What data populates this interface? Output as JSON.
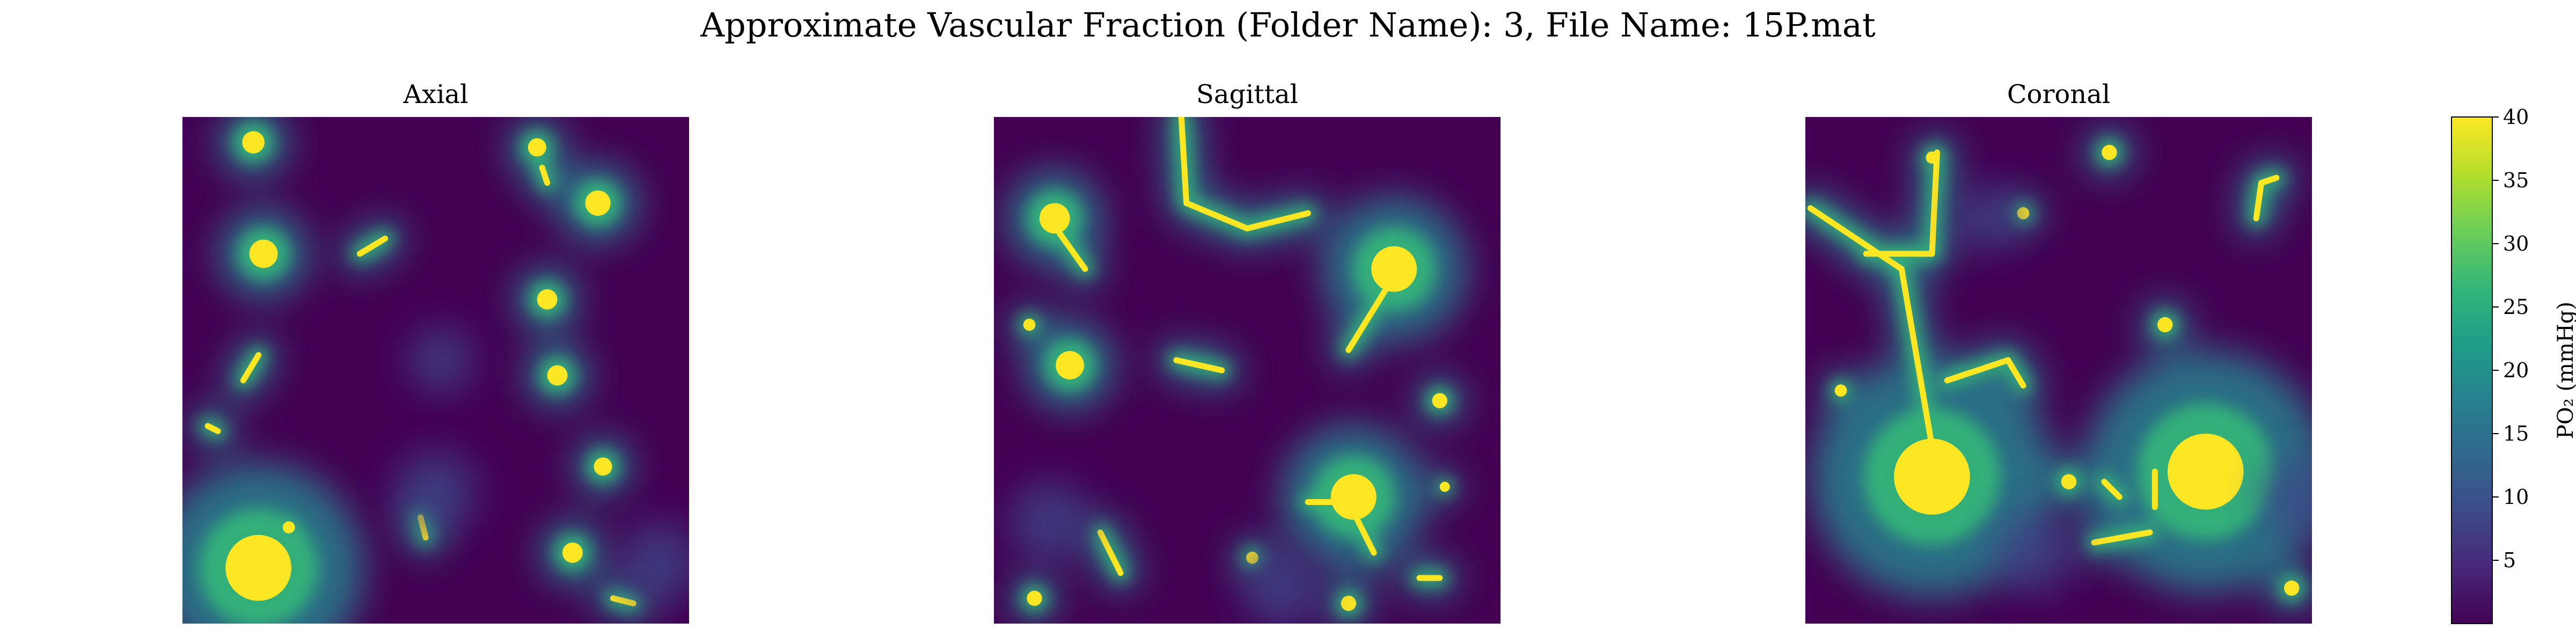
{
  "figure": {
    "suptitle": "Approximate Vascular Fraction (Folder Name): 3, File Name: 15P.mat"
  },
  "chart_data": {
    "type": "heatmap",
    "title": "Approximate Vascular Fraction (Folder Name): 3, File Name: 15P.mat",
    "colormap": "viridis",
    "axes_visible": false,
    "panels": [
      {
        "title": "Axial",
        "vessels": [
          {
            "kind": "blob",
            "x": 0.14,
            "y": 0.05,
            "r": 0.022
          },
          {
            "kind": "blob",
            "x": 0.16,
            "y": 0.27,
            "r": 0.028
          },
          {
            "kind": "segment",
            "x1": 0.35,
            "y1": 0.27,
            "x2": 0.4,
            "y2": 0.24
          },
          {
            "kind": "blob",
            "x": 0.7,
            "y": 0.06,
            "r": 0.018
          },
          {
            "kind": "segment",
            "x1": 0.71,
            "y1": 0.1,
            "x2": 0.72,
            "y2": 0.13
          },
          {
            "kind": "blob",
            "x": 0.82,
            "y": 0.17,
            "r": 0.025
          },
          {
            "kind": "blob",
            "x": 0.72,
            "y": 0.36,
            "r": 0.02
          },
          {
            "kind": "segment",
            "x1": 0.12,
            "y1": 0.52,
            "x2": 0.15,
            "y2": 0.47
          },
          {
            "kind": "segment",
            "x1": 0.05,
            "y1": 0.61,
            "x2": 0.07,
            "y2": 0.62
          },
          {
            "kind": "blob",
            "x": 0.74,
            "y": 0.51,
            "r": 0.02
          },
          {
            "kind": "blob",
            "x": 0.83,
            "y": 0.69,
            "r": 0.018
          },
          {
            "kind": "segment",
            "x1": 0.47,
            "y1": 0.79,
            "x2": 0.48,
            "y2": 0.83
          },
          {
            "kind": "blob",
            "x": 0.15,
            "y": 0.89,
            "r": 0.065
          },
          {
            "kind": "blob",
            "x": 0.21,
            "y": 0.81,
            "r": 0.012
          },
          {
            "kind": "blob",
            "x": 0.77,
            "y": 0.86,
            "r": 0.02
          },
          {
            "kind": "segment",
            "x1": 0.85,
            "y1": 0.95,
            "x2": 0.89,
            "y2": 0.96
          },
          {
            "kind": "faint",
            "x": 0.51,
            "y": 0.48,
            "r": 0.04
          },
          {
            "kind": "faint",
            "x": 0.5,
            "y": 0.74,
            "r": 0.05
          },
          {
            "kind": "faint",
            "x": 0.94,
            "y": 0.88,
            "r": 0.05
          }
        ]
      },
      {
        "title": "Sagittal",
        "vessels": [
          {
            "kind": "segment",
            "x1": 0.37,
            "y1": 0.0,
            "x2": 0.38,
            "y2": 0.17
          },
          {
            "kind": "segment",
            "x1": 0.38,
            "y1": 0.17,
            "x2": 0.5,
            "y2": 0.22
          },
          {
            "kind": "segment",
            "x1": 0.5,
            "y1": 0.22,
            "x2": 0.62,
            "y2": 0.19
          },
          {
            "kind": "blob",
            "x": 0.12,
            "y": 0.2,
            "r": 0.03
          },
          {
            "kind": "segment",
            "x1": 0.13,
            "y1": 0.23,
            "x2": 0.18,
            "y2": 0.3
          },
          {
            "kind": "blob",
            "x": 0.79,
            "y": 0.3,
            "r": 0.045
          },
          {
            "kind": "segment",
            "x1": 0.78,
            "y1": 0.33,
            "x2": 0.7,
            "y2": 0.46
          },
          {
            "kind": "blob",
            "x": 0.15,
            "y": 0.49,
            "r": 0.028
          },
          {
            "kind": "blob",
            "x": 0.07,
            "y": 0.41,
            "r": 0.012
          },
          {
            "kind": "segment",
            "x1": 0.36,
            "y1": 0.48,
            "x2": 0.45,
            "y2": 0.5
          },
          {
            "kind": "blob",
            "x": 0.88,
            "y": 0.56,
            "r": 0.015
          },
          {
            "kind": "blob",
            "x": 0.71,
            "y": 0.75,
            "r": 0.045
          },
          {
            "kind": "segment",
            "x1": 0.62,
            "y1": 0.76,
            "x2": 0.71,
            "y2": 0.76
          },
          {
            "kind": "segment",
            "x1": 0.71,
            "y1": 0.78,
            "x2": 0.75,
            "y2": 0.86
          },
          {
            "kind": "blob",
            "x": 0.89,
            "y": 0.73,
            "r": 0.01
          },
          {
            "kind": "segment",
            "x1": 0.21,
            "y1": 0.82,
            "x2": 0.25,
            "y2": 0.9
          },
          {
            "kind": "blob",
            "x": 0.51,
            "y": 0.87,
            "r": 0.012
          },
          {
            "kind": "blob",
            "x": 0.08,
            "y": 0.95,
            "r": 0.015
          },
          {
            "kind": "segment",
            "x1": 0.84,
            "y1": 0.91,
            "x2": 0.88,
            "y2": 0.91
          },
          {
            "kind": "blob",
            "x": 0.7,
            "y": 0.96,
            "r": 0.015
          },
          {
            "kind": "faint",
            "x": 0.11,
            "y": 0.8,
            "r": 0.05
          },
          {
            "kind": "faint",
            "x": 0.57,
            "y": 0.93,
            "r": 0.05
          }
        ]
      },
      {
        "title": "Coronal",
        "vessels": [
          {
            "kind": "blob",
            "x": 0.25,
            "y": 0.71,
            "r": 0.075
          },
          {
            "kind": "segment",
            "x1": 0.25,
            "y1": 0.65,
            "x2": 0.19,
            "y2": 0.3
          },
          {
            "kind": "segment",
            "x1": 0.19,
            "y1": 0.3,
            "x2": 0.01,
            "y2": 0.18
          },
          {
            "kind": "segment",
            "x1": 0.12,
            "y1": 0.27,
            "x2": 0.25,
            "y2": 0.27
          },
          {
            "kind": "segment",
            "x1": 0.25,
            "y1": 0.27,
            "x2": 0.26,
            "y2": 0.07
          },
          {
            "kind": "segment",
            "x1": 0.28,
            "y1": 0.52,
            "x2": 0.4,
            "y2": 0.48
          },
          {
            "kind": "segment",
            "x1": 0.4,
            "y1": 0.48,
            "x2": 0.43,
            "y2": 0.53
          },
          {
            "kind": "blob",
            "x": 0.25,
            "y": 0.08,
            "r": 0.012
          },
          {
            "kind": "blob",
            "x": 0.6,
            "y": 0.07,
            "r": 0.015
          },
          {
            "kind": "blob",
            "x": 0.43,
            "y": 0.19,
            "r": 0.012
          },
          {
            "kind": "segment",
            "x1": 0.9,
            "y1": 0.13,
            "x2": 0.93,
            "y2": 0.12
          },
          {
            "kind": "segment",
            "x1": 0.9,
            "y1": 0.13,
            "x2": 0.89,
            "y2": 0.2
          },
          {
            "kind": "blob",
            "x": 0.07,
            "y": 0.54,
            "r": 0.012
          },
          {
            "kind": "blob",
            "x": 0.71,
            "y": 0.41,
            "r": 0.015
          },
          {
            "kind": "blob",
            "x": 0.79,
            "y": 0.7,
            "r": 0.075
          },
          {
            "kind": "segment",
            "x1": 0.69,
            "y1": 0.7,
            "x2": 0.69,
            "y2": 0.77
          },
          {
            "kind": "segment",
            "x1": 0.68,
            "y1": 0.82,
            "x2": 0.57,
            "y2": 0.84
          },
          {
            "kind": "segment",
            "x1": 0.59,
            "y1": 0.72,
            "x2": 0.62,
            "y2": 0.75
          },
          {
            "kind": "blob",
            "x": 0.52,
            "y": 0.72,
            "r": 0.015
          },
          {
            "kind": "blob",
            "x": 0.96,
            "y": 0.93,
            "r": 0.015
          },
          {
            "kind": "faint",
            "x": 0.36,
            "y": 0.2,
            "r": 0.04
          },
          {
            "kind": "faint",
            "x": 0.45,
            "y": 0.86,
            "r": 0.05
          },
          {
            "kind": "faint",
            "x": 0.98,
            "y": 0.75,
            "r": 0.05
          }
        ]
      }
    ],
    "colorbar": {
      "label": "PO₂ (mmHg)",
      "vmin": 0,
      "vmax": 40,
      "ticks": [
        "5",
        "10",
        "15",
        "20",
        "25",
        "30",
        "35",
        "40"
      ],
      "colors": [
        "#440154",
        "#482878",
        "#3e4a89",
        "#31688e",
        "#26828e",
        "#1f9e89",
        "#35b779",
        "#6ece58",
        "#b5de2b",
        "#fde725"
      ]
    }
  }
}
